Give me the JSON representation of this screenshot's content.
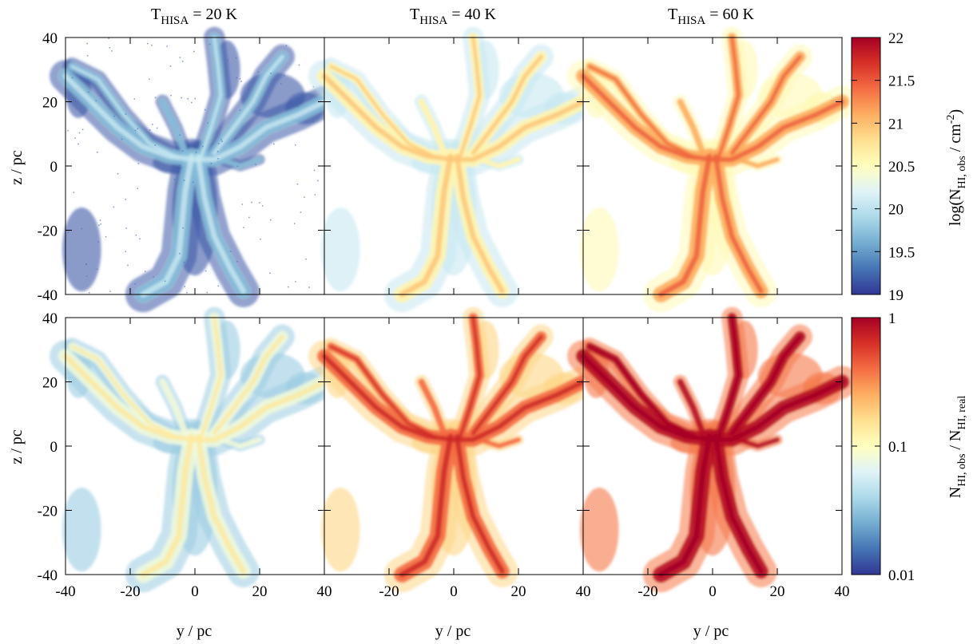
{
  "figure": {
    "column_titles": [
      {
        "base": "T",
        "sub": "HISA",
        "rest": " = 20 K"
      },
      {
        "base": "T",
        "sub": "HISA",
        "rest": " = 40 K"
      },
      {
        "base": "T",
        "sub": "HISA",
        "rest": " = 60 K"
      }
    ],
    "x_axis_label": "y / pc",
    "y_axis_label": "z / pc",
    "top_colorbar": {
      "label_prefix": "log(N",
      "label_sub": "HI, obs",
      "label_mid": " / cm",
      "label_sup": "-2",
      "label_suffix": ")",
      "ticks": [
        "19",
        "19.5",
        "20",
        "20.5",
        "21",
        "21.5",
        "22"
      ],
      "range": [
        19,
        22
      ],
      "scale": "linear",
      "colormap": [
        "#313695",
        "#4575b4",
        "#74add1",
        "#abd9e9",
        "#e0f3f8",
        "#ffffbf",
        "#fee090",
        "#fdae61",
        "#f46d43",
        "#d73027",
        "#a50026"
      ]
    },
    "bottom_colorbar": {
      "label_prefix": "N",
      "label_sub1": "HI, obs",
      "label_mid": " / N",
      "label_sub2": "HI, real",
      "ticks": [
        "0.01",
        "0.1",
        "1"
      ],
      "range": [
        0.01,
        1
      ],
      "scale": "log",
      "colormap": [
        "#313695",
        "#4575b4",
        "#74add1",
        "#abd9e9",
        "#e0f3f8",
        "#ffffbf",
        "#fee090",
        "#fdae61",
        "#f46d43",
        "#d73027",
        "#a50026"
      ]
    }
  },
  "chart_data": [
    {
      "type": "heatmap",
      "panel": "top-left",
      "title": "T_HISA = 20 K",
      "xlabel": "",
      "ylabel": "z / pc",
      "xlim": [
        -40,
        40
      ],
      "ylim": [
        -40,
        40
      ],
      "x_ticks": [
        -40,
        -20,
        0,
        20,
        40
      ],
      "y_ticks": [
        -40,
        -20,
        0,
        20,
        40
      ],
      "z_label": "log(N_HI,obs / cm^-2)",
      "z_range": [
        19,
        22
      ],
      "typical_z": 19.7
    },
    {
      "type": "heatmap",
      "panel": "top-middle",
      "title": "T_HISA = 40 K",
      "xlim": [
        -40,
        40
      ],
      "ylim": [
        -40,
        40
      ],
      "z_label": "log(N_HI,obs / cm^-2)",
      "z_range": [
        19,
        22
      ],
      "typical_z": 20.6
    },
    {
      "type": "heatmap",
      "panel": "top-right",
      "title": "T_HISA = 60 K",
      "xlim": [
        -40,
        40
      ],
      "ylim": [
        -40,
        40
      ],
      "z_label": "log(N_HI,obs / cm^-2)",
      "z_range": [
        19,
        22
      ],
      "typical_z": 21.1
    },
    {
      "type": "heatmap",
      "panel": "bottom-left",
      "xlabel": "y / pc",
      "ylabel": "z / pc",
      "xlim": [
        -40,
        40
      ],
      "ylim": [
        -40,
        40
      ],
      "z_label": "N_HI,obs / N_HI,real",
      "z_range": [
        0.01,
        1
      ],
      "typical_z": 0.08
    },
    {
      "type": "heatmap",
      "panel": "bottom-middle",
      "xlabel": "y / pc",
      "xlim": [
        -40,
        40
      ],
      "ylim": [
        -40,
        40
      ],
      "z_label": "N_HI,obs / N_HI,real",
      "z_range": [
        0.01,
        1
      ],
      "typical_z": 0.4
    },
    {
      "type": "heatmap",
      "panel": "bottom-right",
      "xlabel": "y / pc",
      "xlim": [
        -40,
        40
      ],
      "ylim": [
        -40,
        40
      ],
      "z_label": "N_HI,obs / N_HI,real",
      "z_range": [
        0.01,
        1
      ],
      "typical_z": 0.85
    }
  ]
}
